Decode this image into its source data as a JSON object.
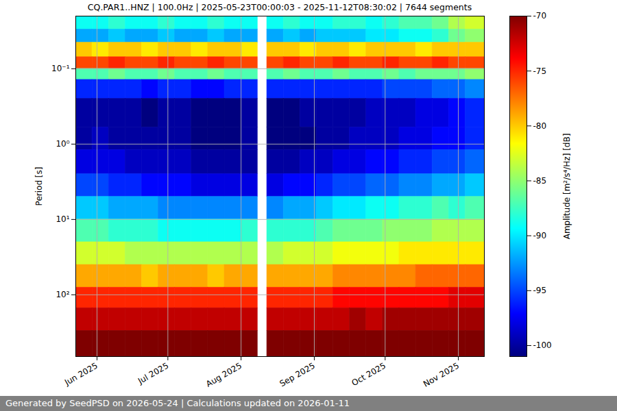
{
  "chart_data": {
    "type": "heatmap",
    "title": "CQ.PAR1..HNZ | 100.0Hz | 2025-05-23T00:00:03 - 2025-11-12T08:30:02 | 7644 segments",
    "ylabel": "Period [s]",
    "caption": "Generated by SeedPSD on 2026-05-24 | Calculations updated on 2026-01-11",
    "log": "y",
    "grid": true,
    "xlim": [
      "2025-05-23",
      "2025-11-12"
    ],
    "xticks": [
      {
        "value": "2025-06-01",
        "label": "Jun 2025"
      },
      {
        "value": "2025-07-01",
        "label": "Jul 2025"
      },
      {
        "value": "2025-08-01",
        "label": "Aug 2025"
      },
      {
        "value": "2025-09-01",
        "label": "Sep 2025"
      },
      {
        "value": "2025-10-01",
        "label": "Oct 2025"
      },
      {
        "value": "2025-11-01",
        "label": "Nov 2025"
      }
    ],
    "ylim": [
      0.02,
      660
    ],
    "yticks": [
      {
        "value": 0.1,
        "label": "10⁻¹"
      },
      {
        "value": 1,
        "label": "10⁰"
      },
      {
        "value": 10,
        "label": "10¹"
      },
      {
        "value": 100,
        "label": "10²"
      }
    ],
    "x_edges": [
      "2025-05-23",
      "2025-05-30",
      "2025-06-06",
      "2025-06-13",
      "2025-06-20",
      "2025-06-27",
      "2025-07-04",
      "2025-07-11",
      "2025-07-18",
      "2025-07-25",
      "2025-08-01",
      "2025-08-08",
      "2025-08-12",
      "2025-08-19",
      "2025-08-26",
      "2025-09-02",
      "2025-09-09",
      "2025-09-16",
      "2025-09-23",
      "2025-09-30",
      "2025-10-07",
      "2025-10-14",
      "2025-10-21",
      "2025-10-28",
      "2025-11-04",
      "2025-11-12"
    ],
    "y_edges": [
      0.02,
      0.03,
      0.045,
      0.07,
      0.1,
      0.14,
      0.25,
      0.6,
      1.2,
      2.5,
      5,
      10,
      20,
      40,
      80,
      150,
      300,
      660
    ],
    "values": [
      [
        -89,
        -89,
        -88,
        -89,
        -89,
        -88,
        -89,
        -89,
        -88,
        -89,
        -89,
        null,
        -89,
        -88,
        -89,
        -89,
        -88,
        -88,
        -89,
        -88,
        -87,
        -87,
        -86,
        -84,
        -83
      ],
      [
        -92,
        -92,
        -91,
        -92,
        -92,
        -91,
        -92,
        -92,
        -91,
        -92,
        -92,
        null,
        -92,
        -91,
        -92,
        -91,
        -91,
        -91,
        -90,
        -90,
        -89,
        -89,
        -88,
        -86,
        -85
      ],
      [
        -80,
        -81,
        -80,
        -80,
        -81,
        -80,
        -80,
        -81,
        -80,
        -80,
        -81,
        null,
        -80,
        -80,
        -81,
        -80,
        -80,
        -81,
        -80,
        -80,
        -80,
        -81,
        -80,
        -80,
        -80
      ],
      [
        -76,
        -76,
        -75,
        -76,
        -76,
        -75,
        -76,
        -76,
        -75,
        -76,
        -76,
        null,
        -76,
        -75,
        -76,
        -76,
        -75,
        -76,
        -76,
        -75,
        -76,
        -76,
        -75,
        -76,
        -76
      ],
      [
        -87,
        -87,
        -86,
        -87,
        -87,
        -86,
        -87,
        -87,
        -86,
        -87,
        -87,
        null,
        -87,
        -86,
        -87,
        -87,
        -86,
        -87,
        -87,
        -86,
        -87,
        -86,
        -86,
        -86,
        -85
      ],
      [
        -96,
        -96,
        -96,
        -96,
        -97,
        -96,
        -96,
        -97,
        -97,
        -96,
        -96,
        null,
        -96,
        -96,
        -96,
        -96,
        -96,
        -96,
        -96,
        -95,
        -95,
        -95,
        -94,
        -94,
        -93
      ],
      [
        -100,
        -100,
        -100,
        -100,
        -101,
        -100,
        -100,
        -101,
        -101,
        -101,
        -100,
        null,
        -101,
        -101,
        -100,
        -100,
        -100,
        -100,
        -99,
        -99,
        -99,
        -98,
        -98,
        -97,
        -96
      ],
      [
        -100,
        -99,
        -100,
        -100,
        -100,
        -100,
        -100,
        -101,
        -101,
        -101,
        -100,
        null,
        -101,
        -101,
        -101,
        -100,
        -100,
        -99,
        -99,
        -99,
        -98,
        -98,
        -97,
        -97,
        -96
      ],
      [
        -98,
        -98,
        -98,
        -99,
        -99,
        -99,
        -99,
        -100,
        -100,
        -100,
        -100,
        null,
        -100,
        -100,
        -99,
        -99,
        -98,
        -98,
        -97,
        -97,
        -96,
        -96,
        -95,
        -95,
        -94
      ],
      [
        -95,
        -95,
        -96,
        -96,
        -97,
        -97,
        -97,
        -98,
        -98,
        -98,
        -98,
        null,
        -98,
        -97,
        -97,
        -96,
        -95,
        -95,
        -94,
        -94,
        -93,
        -93,
        -92,
        -92,
        -91
      ],
      [
        -91,
        -91,
        -92,
        -92,
        -92,
        -93,
        -93,
        -93,
        -93,
        -93,
        -93,
        null,
        -93,
        -92,
        -92,
        -91,
        -90,
        -90,
        -89,
        -89,
        -88,
        -88,
        -87,
        -88,
        -87
      ],
      [
        -87,
        -87,
        -88,
        -88,
        -88,
        -89,
        -89,
        -89,
        -89,
        -89,
        -88,
        null,
        -88,
        -88,
        -88,
        -87,
        -86,
        -86,
        -86,
        -85,
        -85,
        -85,
        -84,
        -84,
        -84
      ],
      [
        -83,
        -83,
        -83,
        -84,
        -84,
        -84,
        -84,
        -84,
        -84,
        -84,
        -84,
        null,
        -84,
        -83,
        -83,
        -83,
        -82,
        -82,
        -82,
        -82,
        -81,
        -81,
        -81,
        -81,
        -81
      ],
      [
        -79,
        -79,
        -79,
        -79,
        -80,
        -79,
        -79,
        -79,
        -80,
        -79,
        -79,
        null,
        -79,
        -79,
        -79,
        -79,
        -78,
        -78,
        -78,
        -78,
        -78,
        -77,
        -77,
        -77,
        -77
      ],
      [
        -75,
        -75,
        -75,
        -75,
        -75,
        -75,
        -75,
        -75,
        -75,
        -75,
        -75,
        null,
        -75,
        -75,
        -75,
        -75,
        -74,
        -74,
        -74,
        -74,
        -74,
        -74,
        -74,
        -73,
        -73
      ],
      [
        -72,
        -72,
        -72,
        -72,
        -72,
        -72,
        -72,
        -72,
        -72,
        -72,
        -72,
        null,
        -72,
        -72,
        -72,
        -72,
        -72,
        -71,
        -72,
        -71,
        -71,
        -71,
        -71,
        -71,
        -71
      ],
      [
        -70,
        -70,
        -70,
        -70,
        -70,
        -70,
        -70,
        -70,
        -70,
        -70,
        -70,
        null,
        -70,
        -70,
        -70,
        -70,
        -70,
        -70,
        -70,
        -70,
        -70,
        -70,
        -70,
        -70,
        -70
      ]
    ],
    "colorbar": {
      "label": "Amplitude [m²/s⁴/Hz] [dB]",
      "range": [
        -101,
        -70
      ],
      "ticks": [
        -100,
        -95,
        -90,
        -85,
        -80,
        -75,
        -70
      ]
    }
  }
}
